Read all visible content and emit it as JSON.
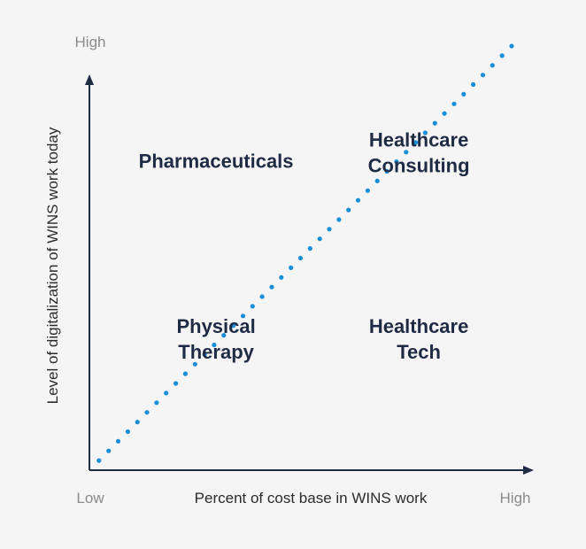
{
  "chart_data": {
    "type": "scatter",
    "title": "",
    "xlabel": "Percent of cost base in WINS work",
    "ylabel": "Level of digitalization of WINS work today",
    "x_axis": {
      "low": "Low",
      "high": "High"
    },
    "y_axis": {
      "high": "High"
    },
    "xlim": [
      0,
      1
    ],
    "ylim": [
      0,
      1
    ],
    "diagonal": {
      "style": "dotted",
      "color": "#1a8fd8",
      "from": [
        0,
        0
      ],
      "to": [
        1,
        1
      ]
    },
    "points": [
      {
        "label": [
          "Pharmaceuticals"
        ],
        "x": 0.3,
        "y": 0.73
      },
      {
        "label": [
          "Healthcare",
          "Consulting"
        ],
        "x": 0.78,
        "y": 0.75
      },
      {
        "label": [
          "Physical",
          "Therapy"
        ],
        "x": 0.3,
        "y": 0.31
      },
      {
        "label": [
          "Healthcare",
          "Tech"
        ],
        "x": 0.78,
        "y": 0.31
      }
    ]
  },
  "colors": {
    "axis": "#1f2a44",
    "dots": "#1a8fd8",
    "text": "#1f2a44",
    "muted": "#8a8a8a"
  }
}
